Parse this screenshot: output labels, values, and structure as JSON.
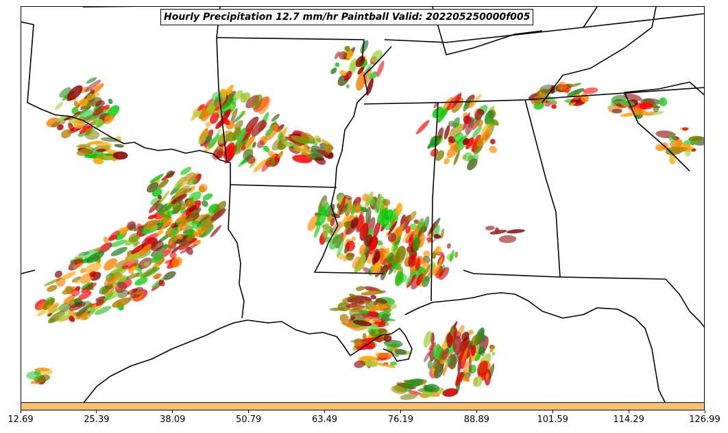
{
  "title": "Hourly Precipitation 12.7 mm/hr Paintball Valid: 202205250000f005",
  "colorbar": {
    "color": "#f9c06a",
    "ticks": [
      "12.69",
      "25.39",
      "38.09",
      "50.79",
      "63.49",
      "76.19",
      "88.89",
      "101.59",
      "114.29",
      "126.99"
    ]
  },
  "member_colors": [
    "#ff0000",
    "#cc0000",
    "#ff8c00",
    "#ff7f00",
    "#00cc00",
    "#33cc33",
    "#228b22",
    "#808000",
    "#9acd32",
    "#a52a2a",
    "#8b0000",
    "#556b2f",
    "#ffa500",
    "#b8860b"
  ],
  "map": {
    "boundaries": "state-lines-and-coastline",
    "region": "south-central-united-states"
  }
}
